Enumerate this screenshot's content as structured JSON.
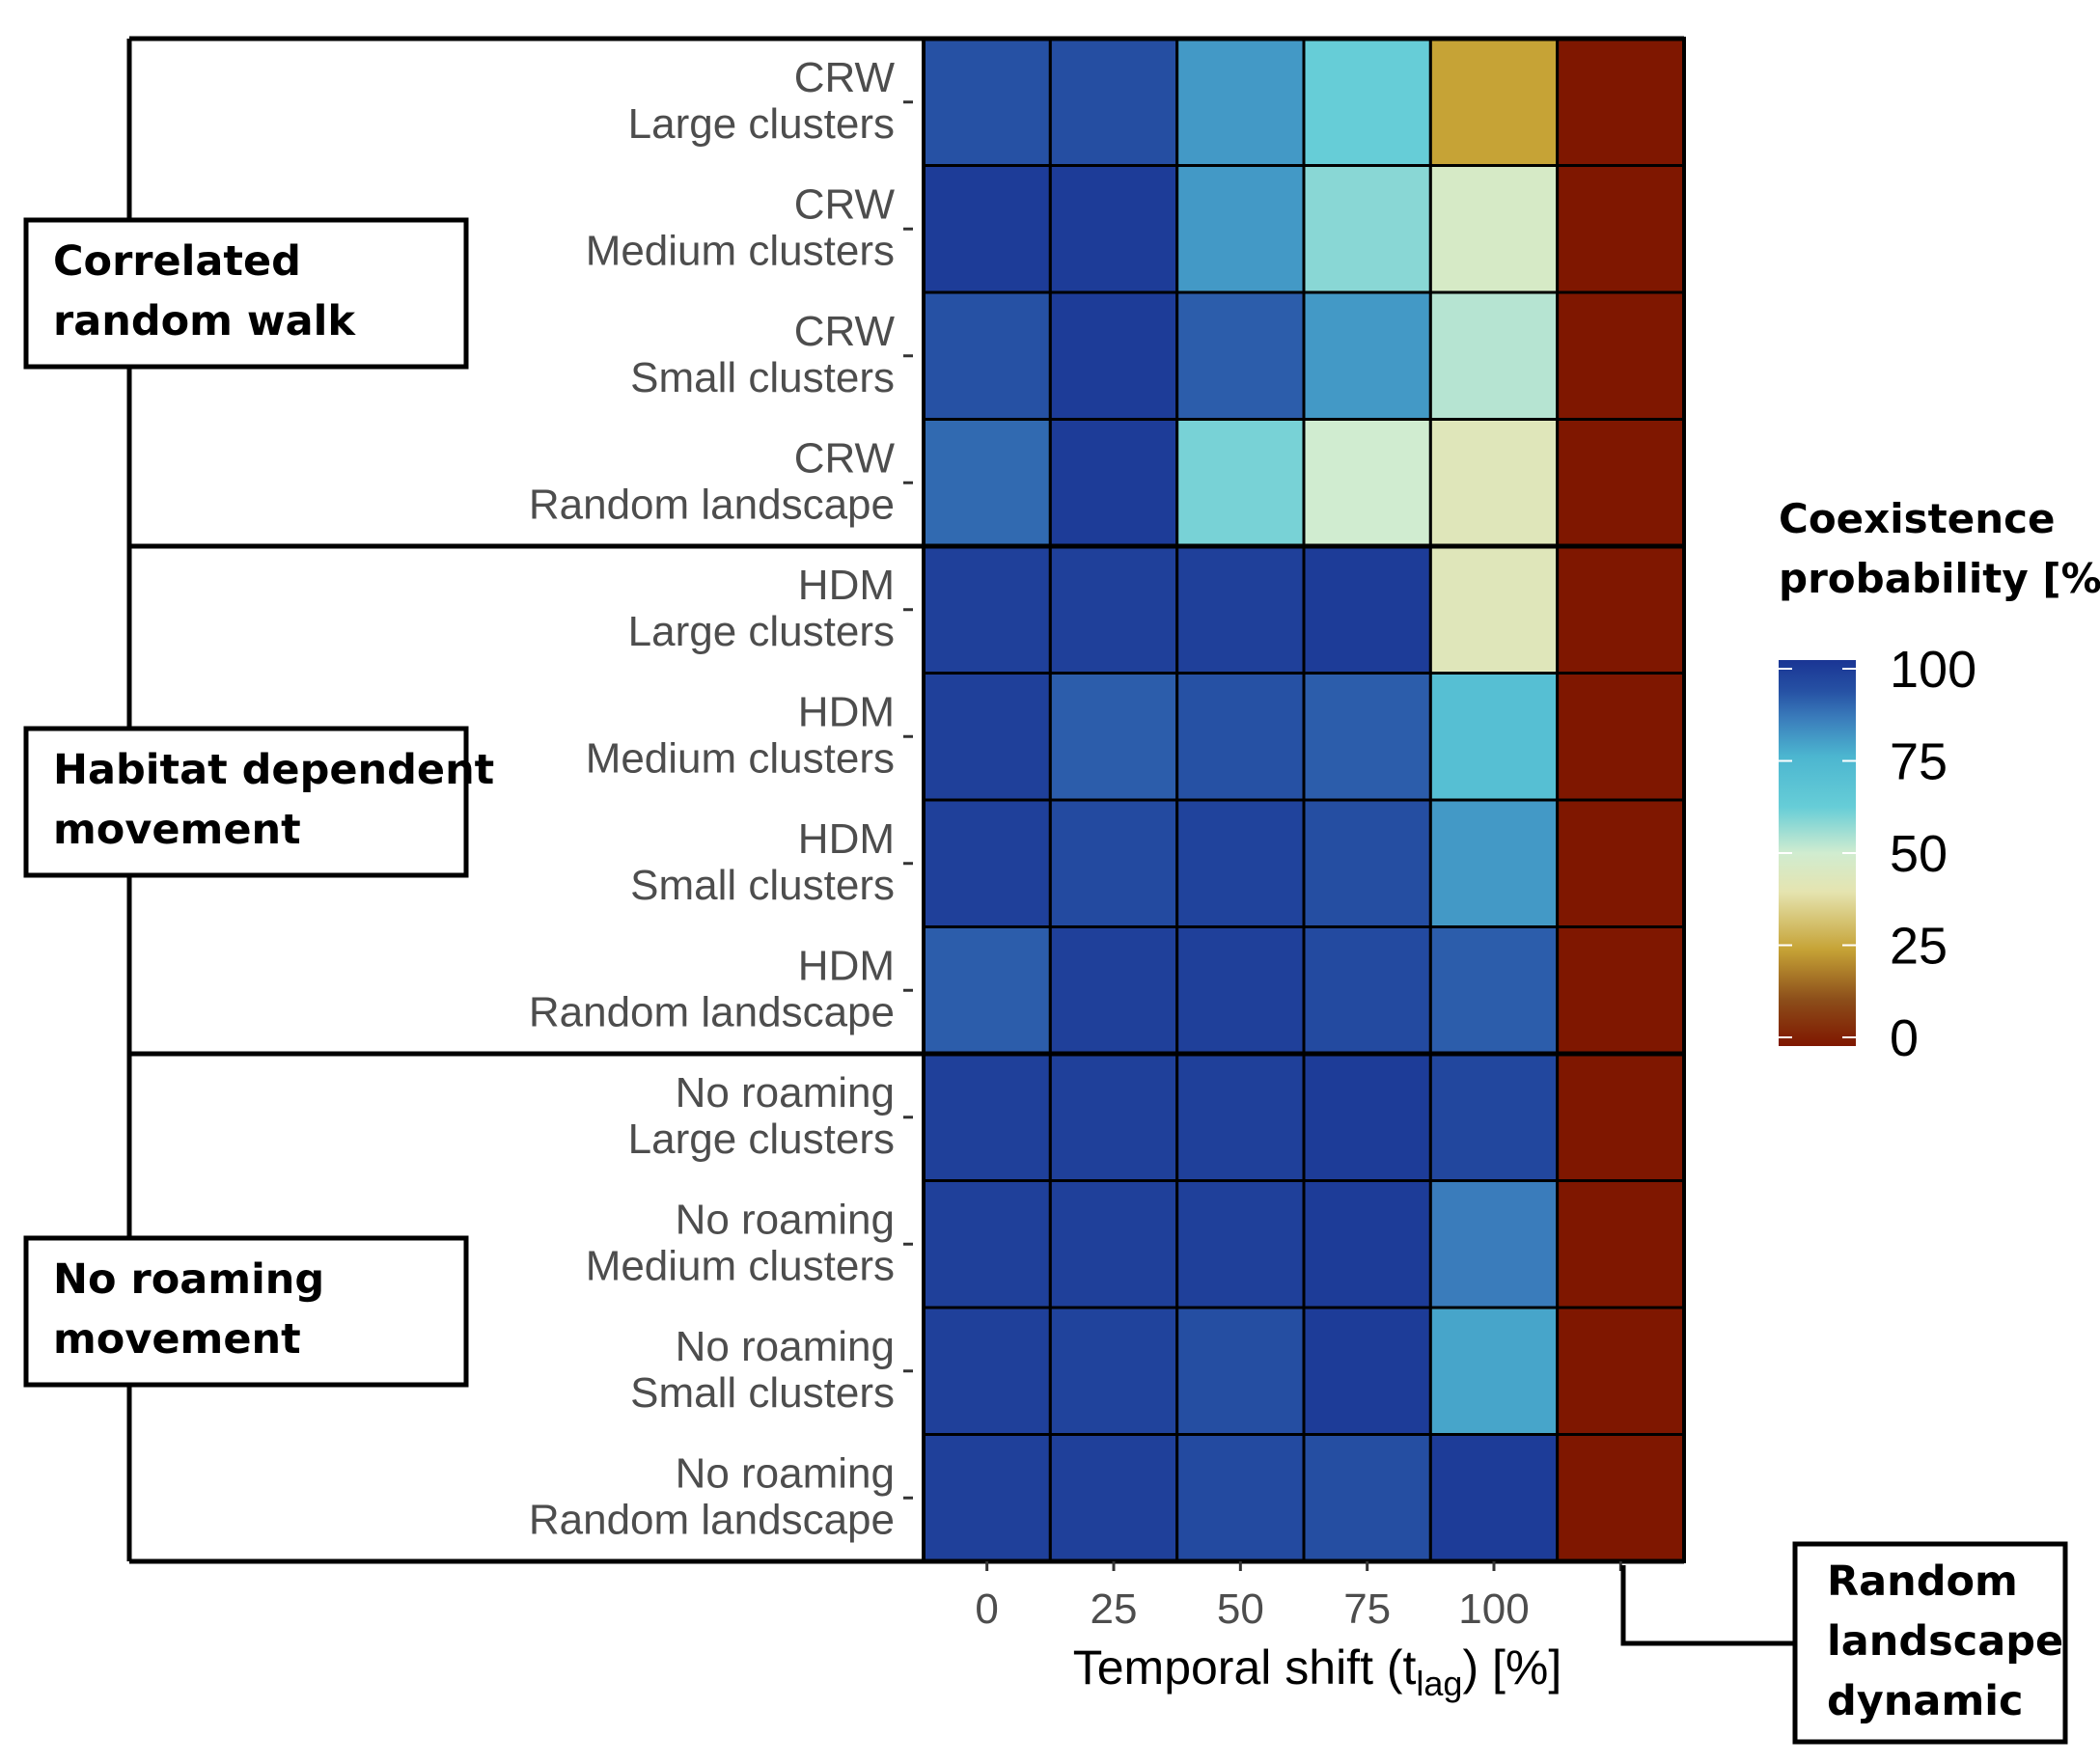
{
  "chart_data": {
    "type": "heatmap",
    "xlabel_main": "Temporal shift (t",
    "xlabel_sub": "lag",
    "xlabel_end": ") [%]",
    "x_ticks": [
      "0",
      "25",
      "50",
      "75",
      "100",
      ""
    ],
    "rows": [
      {
        "line1": "CRW",
        "line2": "Large clusters",
        "values": [
          92,
          93,
          80,
          62,
          25,
          0
        ]
      },
      {
        "line1": "CRW",
        "line2": "Medium clusters",
        "values": [
          98,
          98,
          80,
          58,
          47,
          0
        ]
      },
      {
        "line1": "CRW",
        "line2": "Small clusters",
        "values": [
          92,
          98,
          90,
          80,
          53,
          0
        ]
      },
      {
        "line1": "CRW",
        "line2": "Random landscape",
        "values": [
          88,
          98,
          60,
          50,
          43,
          0
        ]
      },
      {
        "line1": "HDM",
        "line2": "Large clusters",
        "values": [
          97,
          97,
          97,
          98,
          43,
          0
        ]
      },
      {
        "line1": "HDM",
        "line2": "Medium clusters",
        "values": [
          97,
          90,
          92,
          90,
          70,
          0
        ]
      },
      {
        "line1": "HDM",
        "line2": "Small clusters",
        "values": [
          97,
          94,
          96,
          93,
          80,
          0
        ]
      },
      {
        "line1": "HDM",
        "line2": "Random landscape",
        "values": [
          90,
          97,
          97,
          94,
          90,
          0
        ]
      },
      {
        "line1": "No roaming",
        "line2": "Large clusters",
        "values": [
          97,
          97,
          97,
          98,
          95,
          0
        ]
      },
      {
        "line1": "No roaming",
        "line2": "Medium clusters",
        "values": [
          97,
          97,
          97,
          98,
          85,
          0
        ]
      },
      {
        "line1": "No roaming",
        "line2": "Small clusters",
        "values": [
          97,
          96,
          93,
          98,
          78,
          0
        ]
      },
      {
        "line1": "No roaming",
        "line2": "Random landscape",
        "values": [
          97,
          97,
          94,
          93,
          98,
          0
        ]
      }
    ],
    "groups": [
      {
        "line1": "Correlated",
        "line2": "random walk"
      },
      {
        "line1": "Habitat dependent",
        "line2": "movement"
      },
      {
        "line1": "No roaming",
        "line2": "movement"
      }
    ],
    "callout": {
      "line1": "Random",
      "line2": "landscape",
      "line3": "dynamic"
    },
    "legend": {
      "title_line1": "Coexistence",
      "title_line2": "probability [%]",
      "ticks": [
        "100",
        "75",
        "50",
        "25",
        "0"
      ],
      "range": [
        0,
        100
      ]
    },
    "colorscale": [
      {
        "v": 0,
        "c": "#7f1700"
      },
      {
        "v": 12,
        "c": "#8c4e1a"
      },
      {
        "v": 25,
        "c": "#c6a336"
      },
      {
        "v": 40,
        "c": "#e5e4b0"
      },
      {
        "v": 50,
        "c": "#d0ecd0"
      },
      {
        "v": 62,
        "c": "#66cdd7"
      },
      {
        "v": 75,
        "c": "#4cb6d0"
      },
      {
        "v": 85,
        "c": "#3a7cbb"
      },
      {
        "v": 92,
        "c": "#2651a4"
      },
      {
        "v": 100,
        "c": "#1a3594"
      }
    ]
  }
}
